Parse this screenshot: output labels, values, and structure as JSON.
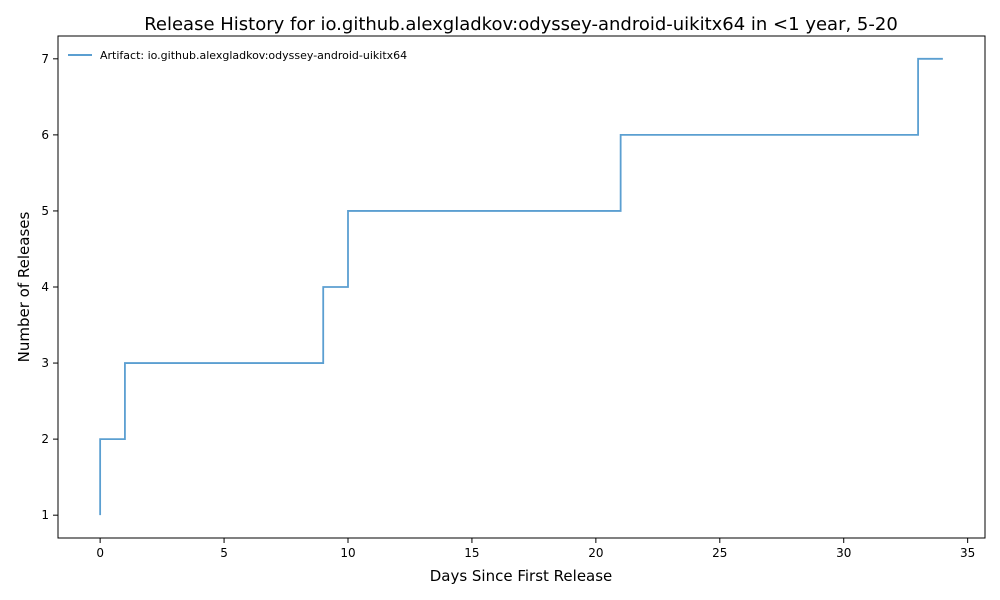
{
  "chart_data": {
    "type": "line",
    "title": "Release History for io.github.alexgladkov:odyssey-android-uikitx64 in <1 year, 5-20",
    "xlabel": "Days Since First Release",
    "ylabel": "Number of Releases",
    "xlim": [
      -1.7,
      35.7
    ],
    "ylim": [
      0.7,
      7.3
    ],
    "xticks": [
      0,
      5,
      10,
      15,
      20,
      25,
      30,
      35
    ],
    "yticks": [
      1,
      2,
      3,
      4,
      5,
      6,
      7
    ],
    "grid": false,
    "legend_position": "top-left",
    "series": [
      {
        "name": "Artifact: io.github.alexgladkov:odyssey-android-uikitx64",
        "color": "#5b9fd1",
        "step": "post",
        "x": [
          0,
          0,
          1,
          9,
          10,
          21,
          33,
          34
        ],
        "y": [
          1,
          2,
          3,
          4,
          5,
          6,
          7,
          7
        ]
      }
    ]
  }
}
